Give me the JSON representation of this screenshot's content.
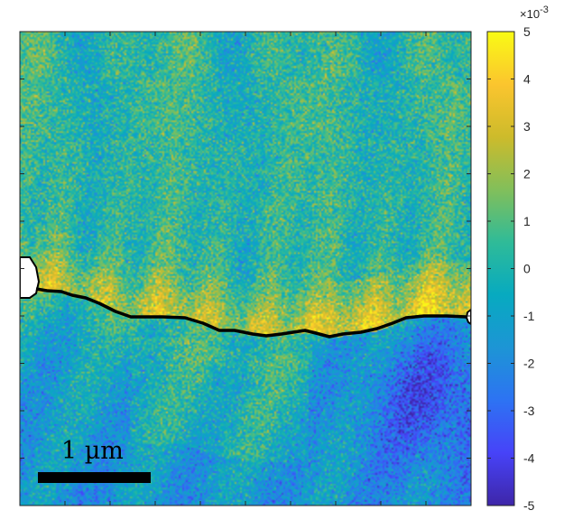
{
  "chart_data": {
    "type": "heatmap",
    "title": "",
    "xlabel": "",
    "ylabel": "",
    "colormap": "parula",
    "colorbar": {
      "range": [
        -5,
        5
      ],
      "ticks": [
        5,
        4,
        3,
        2,
        1,
        0,
        -1,
        -2,
        -3,
        -4,
        -5
      ],
      "tick_labels": [
        "5",
        "4",
        "3",
        "2",
        "1",
        "0",
        "-1",
        "-2",
        "-3",
        "-4",
        "-5"
      ],
      "multiplier_base": "×10",
      "multiplier_exponent": "-3"
    },
    "scale_bar": {
      "label": "1 µm",
      "color": "#000000"
    },
    "grain_boundary": {
      "color": "#000000",
      "description": ""
    },
    "colors": {
      "parula": [
        "#3e26a8",
        "#4743f8",
        "#2d73f3",
        "#1d95d5",
        "#07aac0",
        "#2fbb98",
        "#82bf5a",
        "#cdbb2b",
        "#fbc52e",
        "#f9fb15"
      ]
    }
  }
}
